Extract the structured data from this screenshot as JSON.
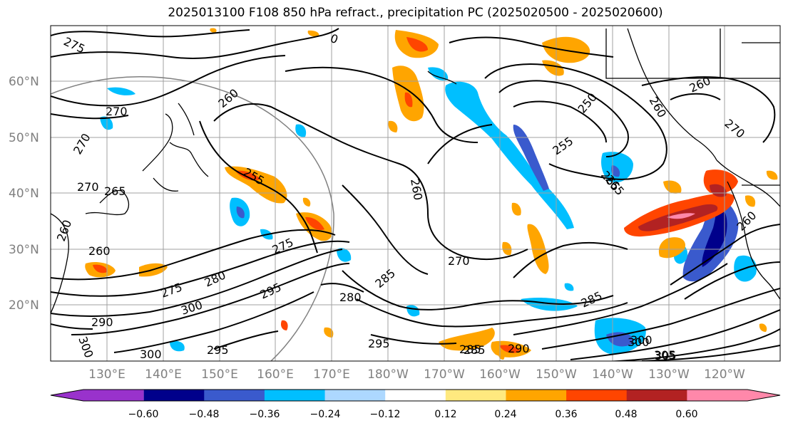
{
  "title": "2025013100 F108 850 hPa refract., precipitation PC (2025020500 - 2025020600)",
  "lat_labels": [
    "60°N",
    "50°N",
    "40°N",
    "30°N",
    "20°N"
  ],
  "lon_labels": [
    "130°E",
    "140°E",
    "150°E",
    "160°E",
    "170°E",
    "180°W",
    "170°W",
    "160°W",
    "150°W",
    "140°W",
    "130°W",
    "120°W"
  ],
  "colorbar": {
    "colors": [
      "#9932cc",
      "#00008b",
      "#3a5acd",
      "#00bfff",
      "#add8ff",
      "#ffffff",
      "#ffe97f",
      "#ffa500",
      "#ff4500",
      "#b22222",
      "#ff88aa"
    ],
    "tick_labels": [
      "−0.60",
      "−0.48",
      "−0.36",
      "−0.24",
      "−0.12",
      "0.12",
      "0.24",
      "0.36",
      "0.48",
      "0.60"
    ]
  },
  "contour_labels": [
    {
      "text": "275"
    },
    {
      "text": "270"
    },
    {
      "text": "270"
    },
    {
      "text": "260"
    },
    {
      "text": "270"
    },
    {
      "text": "265"
    },
    {
      "text": "260"
    },
    {
      "text": "255"
    },
    {
      "text": "260"
    },
    {
      "text": "260"
    },
    {
      "text": "270"
    },
    {
      "text": "285"
    },
    {
      "text": "280"
    },
    {
      "text": "295"
    },
    {
      "text": "275"
    },
    {
      "text": "280"
    },
    {
      "text": "275"
    },
    {
      "text": "300"
    },
    {
      "text": "290"
    },
    {
      "text": "300"
    },
    {
      "text": "295"
    },
    {
      "text": "300"
    },
    {
      "text": "285"
    },
    {
      "text": "305"
    },
    {
      "text": "300"
    },
    {
      "text": "290"
    },
    {
      "text": "295"
    },
    {
      "text": "285"
    },
    {
      "text": "255"
    },
    {
      "text": "250"
    },
    {
      "text": "260"
    },
    {
      "text": "260"
    },
    {
      "text": "270"
    },
    {
      "text": "265"
    },
    {
      "text": "285"
    },
    {
      "text": "300"
    },
    {
      "text": "305"
    },
    {
      "text": "265"
    },
    {
      "text": "0"
    },
    {
      "text": "260"
    }
  ]
}
